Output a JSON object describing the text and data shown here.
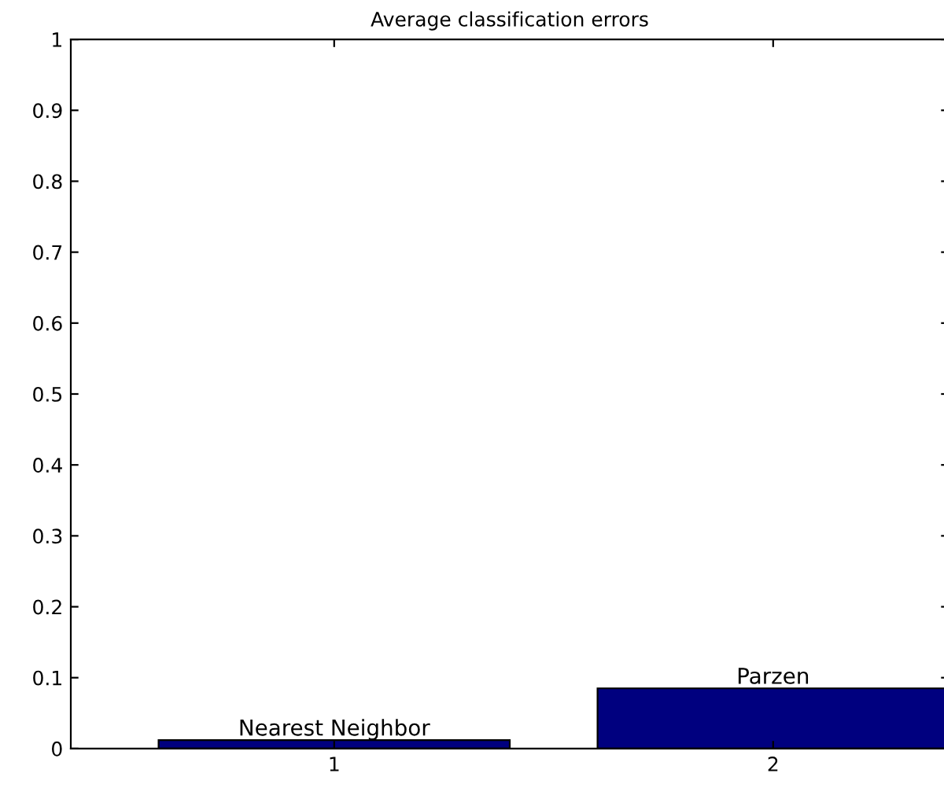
{
  "chart_data": {
    "type": "bar",
    "title": "Average classification errors",
    "x": [
      1,
      2
    ],
    "values": [
      0.012,
      0.085
    ],
    "color": "#00007f",
    "xlim": [
      0.4,
      2.4
    ],
    "xticks": [
      1,
      2
    ],
    "ylim": [
      0,
      1
    ],
    "yticks": [
      0,
      0.1,
      0.2,
      0.3,
      0.4,
      0.5,
      0.6,
      0.7,
      0.8,
      0.9,
      1
    ],
    "annotations": [
      {
        "text": "Nearest Neighbor",
        "x": 1,
        "y": 0.012
      },
      {
        "text": "Parzen",
        "x": 2,
        "y": 0.085
      }
    ],
    "grid": false
  }
}
